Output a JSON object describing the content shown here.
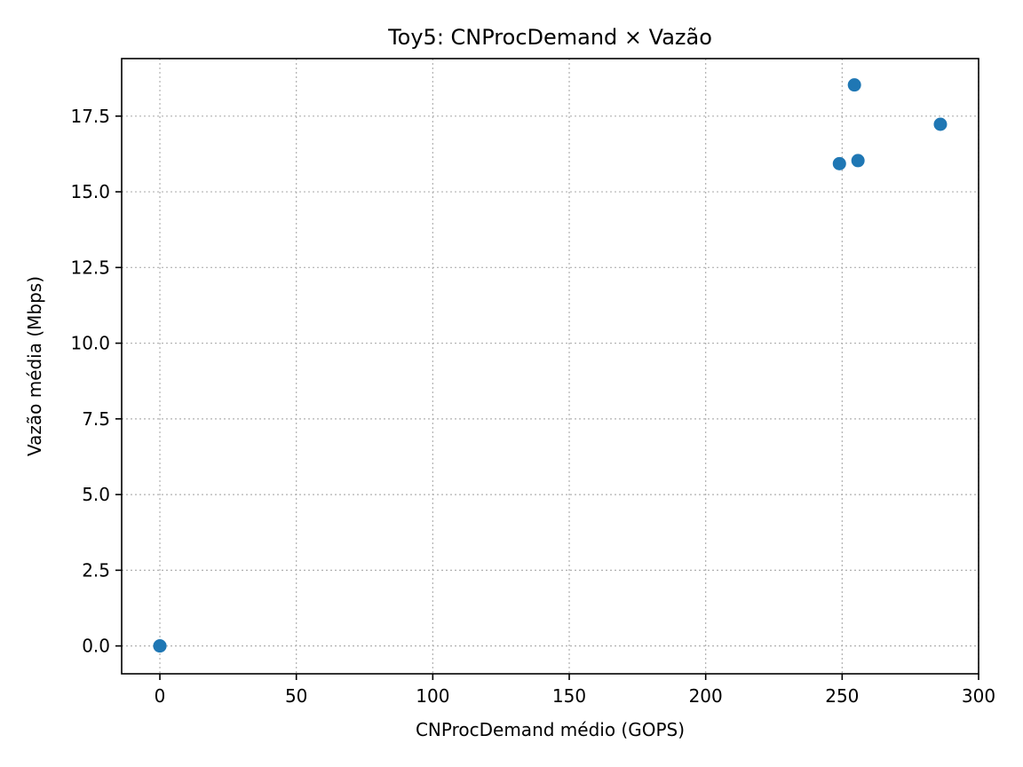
{
  "chart_data": {
    "type": "scatter",
    "title": "Toy5: CNProcDemand × Vazão",
    "xlabel": "CNProcDemand médio (GOPS)",
    "ylabel": "Vazão média (Mbps)",
    "xlim": [
      -14,
      300
    ],
    "ylim": [
      -0.92,
      19.4
    ],
    "x_ticks": [
      0,
      50,
      100,
      150,
      200,
      250,
      300
    ],
    "x_tick_labels": [
      "0",
      "50",
      "100",
      "150",
      "200",
      "250",
      "300"
    ],
    "y_ticks": [
      0.0,
      2.5,
      5.0,
      7.5,
      10.0,
      12.5,
      15.0,
      17.5
    ],
    "y_tick_labels": [
      "0.0",
      "2.5",
      "5.0",
      "7.5",
      "10.0",
      "12.5",
      "15.0",
      "17.5"
    ],
    "grid": true,
    "marker_color": "#1f77b4",
    "series": [
      {
        "points": [
          {
            "x": 0,
            "y": 0.0
          },
          {
            "x": 0,
            "y": 0.0
          },
          {
            "x": 249,
            "y": 15.93
          },
          {
            "x": 254.5,
            "y": 18.53
          },
          {
            "x": 255.8,
            "y": 16.03
          },
          {
            "x": 286,
            "y": 17.23
          }
        ]
      }
    ]
  }
}
